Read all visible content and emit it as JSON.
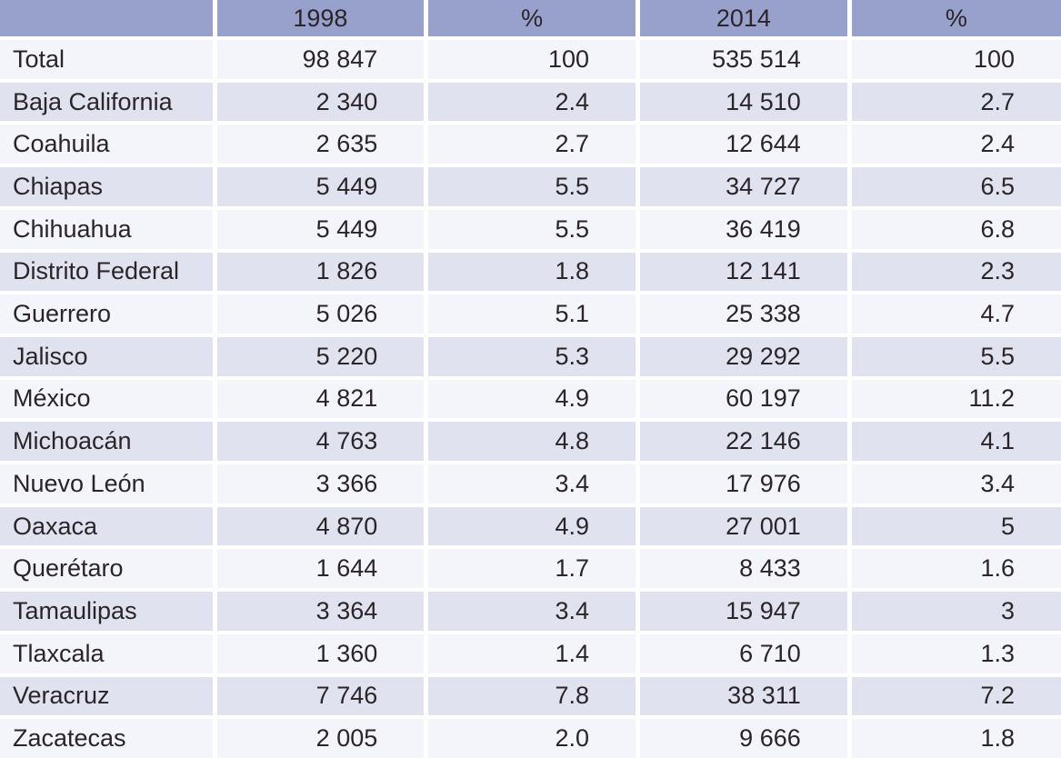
{
  "chart_data": {
    "type": "table",
    "title": "",
    "columns": [
      "",
      "1998",
      "%",
      "2014",
      "%"
    ],
    "rows": [
      [
        "Total",
        "98 847",
        "100",
        "535 514",
        "100"
      ],
      [
        "Baja California",
        "2 340",
        "2.4",
        "14 510",
        "2.7"
      ],
      [
        "Coahuila",
        "2 635",
        "2.7",
        "12 644",
        "2.4"
      ],
      [
        "Chiapas",
        "5 449",
        "5.5",
        "34 727",
        "6.5"
      ],
      [
        "Chihuahua",
        "5 449",
        "5.5",
        "36 419",
        "6.8"
      ],
      [
        "Distrito Federal",
        "1 826",
        "1.8",
        "12 141",
        "2.3"
      ],
      [
        "Guerrero",
        "5 026",
        "5.1",
        "25 338",
        "4.7"
      ],
      [
        "Jalisco",
        "5 220",
        "5.3",
        "29 292",
        "5.5"
      ],
      [
        "México",
        "4 821",
        "4.9",
        "60 197",
        "11.2"
      ],
      [
        "Michoacán",
        "4 763",
        "4.8",
        "22 146",
        "4.1"
      ],
      [
        "Nuevo León",
        "3 366",
        "3.4",
        "17 976",
        "3.4"
      ],
      [
        "Oaxaca",
        "4 870",
        "4.9",
        "27 001",
        "5"
      ],
      [
        "Querétaro",
        "1 644",
        "1.7",
        "8 433",
        "1.6"
      ],
      [
        "Tamaulipas",
        "3 364",
        "3.4",
        "15 947",
        "3"
      ],
      [
        "Tlaxcala",
        "1 360",
        "1.4",
        "6 710",
        "1.3"
      ],
      [
        "Veracruz",
        "7 746",
        "7.8",
        "38 311",
        "7.2"
      ],
      [
        "Zacatecas",
        "2 005",
        "2.0",
        "9 666",
        "1.8"
      ]
    ],
    "layout": {
      "grid": "white separators between all cells",
      "legend": "none",
      "header_alignment": "center",
      "label_alignment": "left",
      "value_alignment": "right"
    },
    "colors": {
      "header_bg": "#98a1cb",
      "row_light": "#f3f5fa",
      "row_lavender": "#e0e2f0",
      "grid_line": "#ffffff",
      "text": "#2b2529"
    }
  }
}
